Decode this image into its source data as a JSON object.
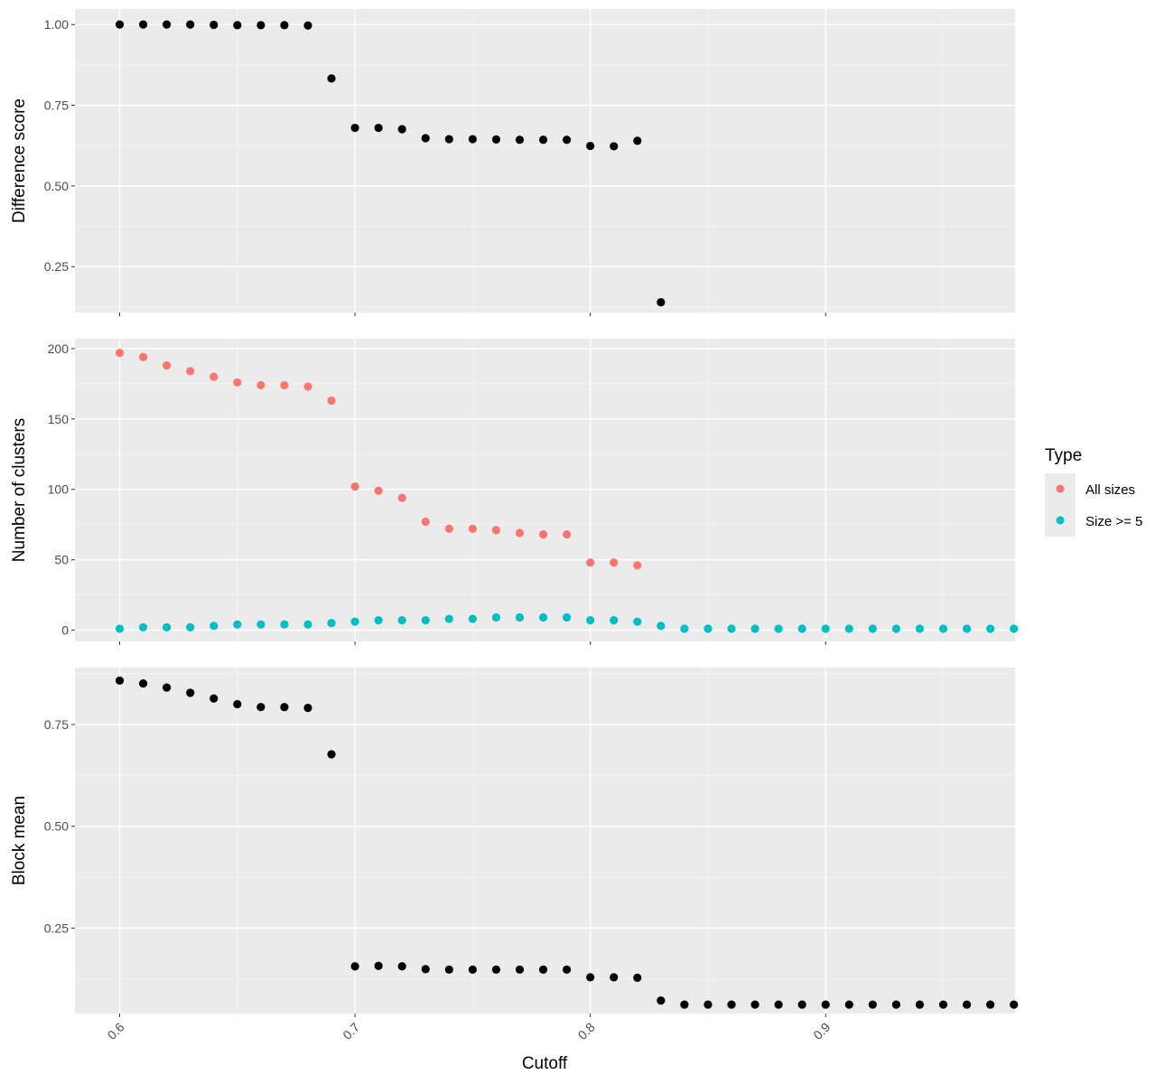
{
  "chart_data": {
    "type": "scatter",
    "xlabel": "Cutoff",
    "x_tick_labels": [
      "0.6",
      "0.7",
      "0.8",
      "0.9"
    ],
    "x_ticks": [
      0.6,
      0.7,
      0.8,
      0.9
    ],
    "xlim": [
      0.581,
      0.9805
    ],
    "grid": true,
    "legend": {
      "title": "Type",
      "position": "right",
      "entries": [
        {
          "label": "All sizes",
          "color": "#F8766D"
        },
        {
          "label": "Size >= 5",
          "color": "#00BFC4"
        }
      ]
    },
    "panels": [
      {
        "ylabel": "Difference score",
        "ylim": [
          0.108,
          1.048
        ],
        "y_ticks": [
          0.25,
          0.5,
          0.75,
          1.0
        ],
        "y_tick_labels": [
          "0.25",
          "0.50",
          "0.75",
          "1.00"
        ],
        "series": [
          {
            "color": "#000000",
            "x": [
              0.6,
              0.61,
              0.62,
              0.63,
              0.64,
              0.65,
              0.66,
              0.67,
              0.68,
              0.69,
              0.7,
              0.71,
              0.72,
              0.73,
              0.74,
              0.75,
              0.76,
              0.77,
              0.78,
              0.79,
              0.8,
              0.81,
              0.82,
              0.83
            ],
            "y": [
              1.0,
              1.0,
              1.0,
              1.0,
              0.999,
              0.998,
              0.998,
              0.998,
              0.997,
              0.833,
              0.68,
              0.68,
              0.676,
              0.648,
              0.645,
              0.645,
              0.644,
              0.643,
              0.643,
              0.643,
              0.624,
              0.623,
              0.64,
              0.14
            ]
          }
        ]
      },
      {
        "ylabel": "Number of clusters",
        "ylim": [
          -8,
          207
        ],
        "y_ticks": [
          0,
          50,
          100,
          150,
          200
        ],
        "y_tick_labels": [
          "0",
          "50",
          "100",
          "150",
          "200"
        ],
        "series": [
          {
            "name": "All sizes",
            "color": "#F8766D",
            "x": [
              0.6,
              0.61,
              0.62,
              0.63,
              0.64,
              0.65,
              0.66,
              0.67,
              0.68,
              0.69,
              0.7,
              0.71,
              0.72,
              0.73,
              0.74,
              0.75,
              0.76,
              0.77,
              0.78,
              0.79,
              0.8,
              0.81,
              0.82
            ],
            "y": [
              197,
              194,
              188,
              184,
              180,
              176,
              174,
              174,
              173,
              163,
              102,
              99,
              94,
              77,
              72,
              72,
              71,
              69,
              68,
              68,
              48,
              48,
              46
            ]
          },
          {
            "name": "Size >= 5",
            "color": "#00BFC4",
            "x": [
              0.6,
              0.61,
              0.62,
              0.63,
              0.64,
              0.65,
              0.66,
              0.67,
              0.68,
              0.69,
              0.7,
              0.71,
              0.72,
              0.73,
              0.74,
              0.75,
              0.76,
              0.77,
              0.78,
              0.79,
              0.8,
              0.81,
              0.82,
              0.83,
              0.84,
              0.85,
              0.86,
              0.87,
              0.88,
              0.89,
              0.9,
              0.91,
              0.92,
              0.93,
              0.94,
              0.95,
              0.96,
              0.97,
              0.98
            ],
            "y": [
              1,
              2,
              2,
              2,
              3,
              4,
              4,
              4,
              4,
              5,
              6,
              7,
              7,
              7,
              8,
              8,
              9,
              9,
              9,
              9,
              7,
              7,
              6,
              3,
              1,
              1,
              1,
              1,
              1,
              1,
              1,
              1,
              1,
              1,
              1,
              1,
              1,
              1,
              1
            ]
          }
        ]
      },
      {
        "ylabel": "Block mean",
        "ylim": [
          0.04,
          0.89
        ],
        "y_ticks": [
          0.25,
          0.5,
          0.75
        ],
        "y_tick_labels": [
          "0.25",
          "0.50",
          "0.75"
        ],
        "series": [
          {
            "color": "#000000",
            "x": [
              0.6,
              0.61,
              0.62,
              0.63,
              0.64,
              0.65,
              0.66,
              0.67,
              0.68,
              0.69,
              0.7,
              0.71,
              0.72,
              0.73,
              0.74,
              0.75,
              0.76,
              0.77,
              0.78,
              0.79,
              0.8,
              0.81,
              0.82,
              0.83,
              0.84,
              0.85,
              0.86,
              0.87,
              0.88,
              0.89,
              0.9,
              0.91,
              0.92,
              0.93,
              0.94,
              0.95,
              0.96,
              0.97,
              0.98
            ],
            "y": [
              0.858,
              0.851,
              0.841,
              0.828,
              0.814,
              0.8,
              0.793,
              0.793,
              0.791,
              0.677,
              0.156,
              0.157,
              0.156,
              0.149,
              0.148,
              0.148,
              0.148,
              0.148,
              0.148,
              0.148,
              0.129,
              0.129,
              0.128,
              0.072,
              0.062,
              0.062,
              0.062,
              0.062,
              0.062,
              0.062,
              0.062,
              0.062,
              0.062,
              0.062,
              0.062,
              0.062,
              0.062,
              0.062,
              0.062
            ]
          }
        ]
      }
    ]
  }
}
